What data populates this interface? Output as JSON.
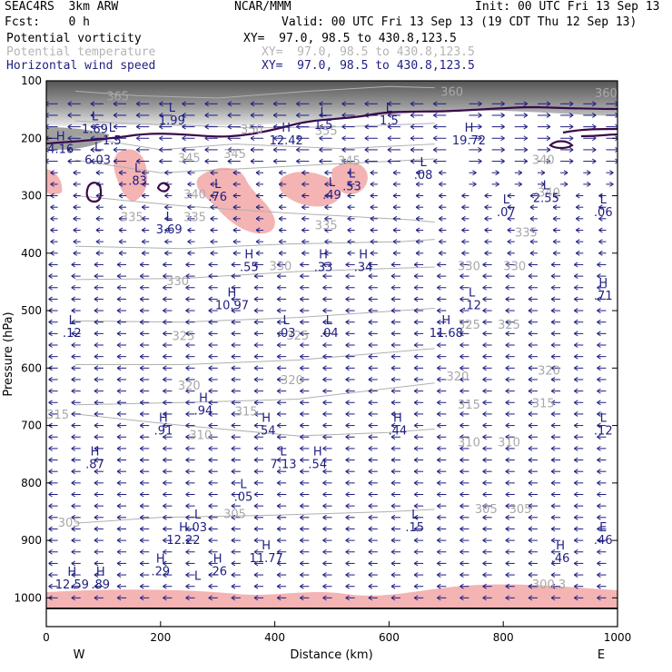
{
  "header": {
    "model": "SEAC4RS  3km ARW",
    "org": "NCAR/MMM",
    "init": "Init: 00 UTC Fri 13 Sep 13",
    "fcst": "Fcst:    0 h",
    "valid": "Valid: 00 UTC Fri 13 Sep 13 (19 CDT Thu 12 Sep 13)",
    "fields": [
      {
        "name": "Potential vorticity",
        "xy": "XY=  97.0, 98.5 to 430.8,123.5",
        "color": "#000000"
      },
      {
        "name": "Potential temperature",
        "xy": "XY=  97.0, 98.5 to 430.8,123.5",
        "color": "#b4b4b4"
      },
      {
        "name": "Horizontal wind speed",
        "xy": "XY=  97.0, 98.5 to 430.8,123.5",
        "color": "#1e1e82"
      }
    ]
  },
  "chart_data": {
    "type": "cross-section",
    "xlabel": "Distance (km)",
    "ylabel": "Pressure (hPa)",
    "xlim": [
      0,
      1000
    ],
    "ylim": [
      100,
      1050
    ],
    "x_ticks": [
      0,
      200,
      400,
      600,
      800,
      1000
    ],
    "y_ticks": [
      100,
      200,
      300,
      400,
      500,
      600,
      700,
      800,
      900,
      1000
    ],
    "end_labels": {
      "left": "W",
      "right": "E"
    },
    "colors": {
      "theta": "#a8a8a8",
      "pv": "#3a0a4a",
      "wind": "#1e1e82",
      "shading": "#f4b4b4",
      "axes": "#000000"
    },
    "theta_labels": [
      {
        "text": "365",
        "x": 125,
        "p": 128
      },
      {
        "text": "360",
        "x": 710,
        "p": 120
      },
      {
        "text": "360",
        "x": 980,
        "p": 122
      },
      {
        "text": "350",
        "x": 360,
        "p": 185
      },
      {
        "text": "355",
        "x": 490,
        "p": 188
      },
      {
        "text": "345",
        "x": 250,
        "p": 235
      },
      {
        "text": "345",
        "x": 330,
        "p": 228
      },
      {
        "text": "345",
        "x": 530,
        "p": 240
      },
      {
        "text": "340",
        "x": 870,
        "p": 238
      },
      {
        "text": "340",
        "x": 260,
        "p": 298
      },
      {
        "text": "340",
        "x": 880,
        "p": 295
      },
      {
        "text": "335",
        "x": 150,
        "p": 338
      },
      {
        "text": "335",
        "x": 260,
        "p": 338
      },
      {
        "text": "335",
        "x": 490,
        "p": 352
      },
      {
        "text": "335",
        "x": 840,
        "p": 365
      },
      {
        "text": "330",
        "x": 410,
        "p": 423
      },
      {
        "text": "330",
        "x": 230,
        "p": 449
      },
      {
        "text": "330",
        "x": 740,
        "p": 423
      },
      {
        "text": "330",
        "x": 820,
        "p": 423
      },
      {
        "text": "325",
        "x": 240,
        "p": 545
      },
      {
        "text": "325",
        "x": 440,
        "p": 544
      },
      {
        "text": "325",
        "x": 740,
        "p": 525
      },
      {
        "text": "325",
        "x": 810,
        "p": 525
      },
      {
        "text": "320",
        "x": 250,
        "p": 631
      },
      {
        "text": "320",
        "x": 430,
        "p": 622
      },
      {
        "text": "320",
        "x": 720,
        "p": 615
      },
      {
        "text": "320",
        "x": 880,
        "p": 605
      },
      {
        "text": "315",
        "x": 20,
        "p": 682
      },
      {
        "text": "315",
        "x": 350,
        "p": 676
      },
      {
        "text": "315",
        "x": 740,
        "p": 664
      },
      {
        "text": "315",
        "x": 870,
        "p": 662
      },
      {
        "text": "310",
        "x": 270,
        "p": 717
      },
      {
        "text": "310",
        "x": 740,
        "p": 730
      },
      {
        "text": "310",
        "x": 810,
        "p": 730
      },
      {
        "text": "305",
        "x": 40,
        "p": 870
      },
      {
        "text": "305",
        "x": 330,
        "p": 855
      },
      {
        "text": "305",
        "x": 770,
        "p": 846
      },
      {
        "text": "305",
        "x": 830,
        "p": 846
      },
      {
        "text": "300.3",
        "x": 880,
        "p": 977
      }
    ],
    "extrema": [
      {
        "type": "L",
        "value": "1.69",
        "x": 85,
        "p": 175
      },
      {
        "type": "L",
        "value": "1.99",
        "x": 220,
        "p": 160
      },
      {
        "type": "L",
        "value": "1.5",
        "x": 115,
        "p": 195
      },
      {
        "type": "H",
        "value": "4.16",
        "x": 25,
        "p": 210
      },
      {
        "type": "L",
        "value": "6.03",
        "x": 90,
        "p": 229
      },
      {
        "type": "L",
        "value": ".83",
        "x": 160,
        "p": 265
      },
      {
        "type": "L",
        "value": ".76",
        "x": 300,
        "p": 293
      },
      {
        "type": "L",
        "value": "3.69",
        "x": 215,
        "p": 350
      },
      {
        "type": "H",
        "value": "12.42",
        "x": 420,
        "p": 195
      },
      {
        "type": "L",
        "value": "1.5",
        "x": 485,
        "p": 168
      },
      {
        "type": "L",
        "value": "1.5",
        "x": 600,
        "p": 160
      },
      {
        "type": "L",
        "value": ".49",
        "x": 500,
        "p": 290
      },
      {
        "type": "L",
        "value": ".53",
        "x": 535,
        "p": 275
      },
      {
        "type": "L",
        "value": ".08",
        "x": 660,
        "p": 255
      },
      {
        "type": "H",
        "value": "19.72",
        "x": 740,
        "p": 195
      },
      {
        "type": "L",
        "value": ".07",
        "x": 805,
        "p": 320
      },
      {
        "type": "L",
        "value": "2.55",
        "x": 875,
        "p": 295
      },
      {
        "type": "L",
        "value": ".06",
        "x": 975,
        "p": 320
      },
      {
        "type": "H",
        "value": ".55",
        "x": 355,
        "p": 415
      },
      {
        "type": "H",
        "value": ".33",
        "x": 485,
        "p": 415
      },
      {
        "type": "H",
        "value": ".34",
        "x": 555,
        "p": 415
      },
      {
        "type": "H",
        "value": ".71",
        "x": 975,
        "p": 465
      },
      {
        "type": "H",
        "value": "10.97",
        "x": 325,
        "p": 482
      },
      {
        "type": "L",
        "value": ".12",
        "x": 745,
        "p": 482
      },
      {
        "type": "L",
        "value": ".12",
        "x": 45,
        "p": 530
      },
      {
        "type": "L",
        "value": ".03",
        "x": 420,
        "p": 530
      },
      {
        "type": "L",
        "value": ".04",
        "x": 495,
        "p": 530
      },
      {
        "type": "H",
        "value": "11.68",
        "x": 700,
        "p": 530
      },
      {
        "type": "H",
        "value": ".94",
        "x": 275,
        "p": 665
      },
      {
        "type": "H",
        "value": ".91",
        "x": 205,
        "p": 700
      },
      {
        "type": "H",
        "value": ".54",
        "x": 385,
        "p": 700
      },
      {
        "type": "H",
        "value": ".44",
        "x": 615,
        "p": 700
      },
      {
        "type": "L",
        "value": ".12",
        "x": 975,
        "p": 700
      },
      {
        "type": "H",
        "value": ".87",
        "x": 85,
        "p": 758
      },
      {
        "type": "L",
        "value": "7.13",
        "x": 415,
        "p": 758
      },
      {
        "type": "H",
        "value": ".54",
        "x": 475,
        "p": 758
      },
      {
        "type": "L",
        "value": ".05",
        "x": 345,
        "p": 815
      },
      {
        "type": "L",
        "value": ".03",
        "x": 265,
        "p": 868
      },
      {
        "type": "L",
        "value": ".15",
        "x": 645,
        "p": 868
      },
      {
        "type": "H",
        "value": "12.22",
        "x": 240,
        "p": 890
      },
      {
        "type": "E",
        "value": ".46",
        "x": 975,
        "p": 890
      },
      {
        "type": "H",
        "value": "11.77",
        "x": 385,
        "p": 922
      },
      {
        "type": "H",
        "value": ".46",
        "x": 900,
        "p": 922
      },
      {
        "type": "H",
        "value": ".29",
        "x": 200,
        "p": 945
      },
      {
        "type": "H",
        "value": ".26",
        "x": 300,
        "p": 945
      },
      {
        "type": "H",
        "value": "12.59",
        "x": 45,
        "p": 968
      },
      {
        "type": "H",
        "value": ".89",
        "x": 95,
        "p": 968
      },
      {
        "type": "L",
        "value": "",
        "x": 265,
        "p": 975
      }
    ]
  }
}
